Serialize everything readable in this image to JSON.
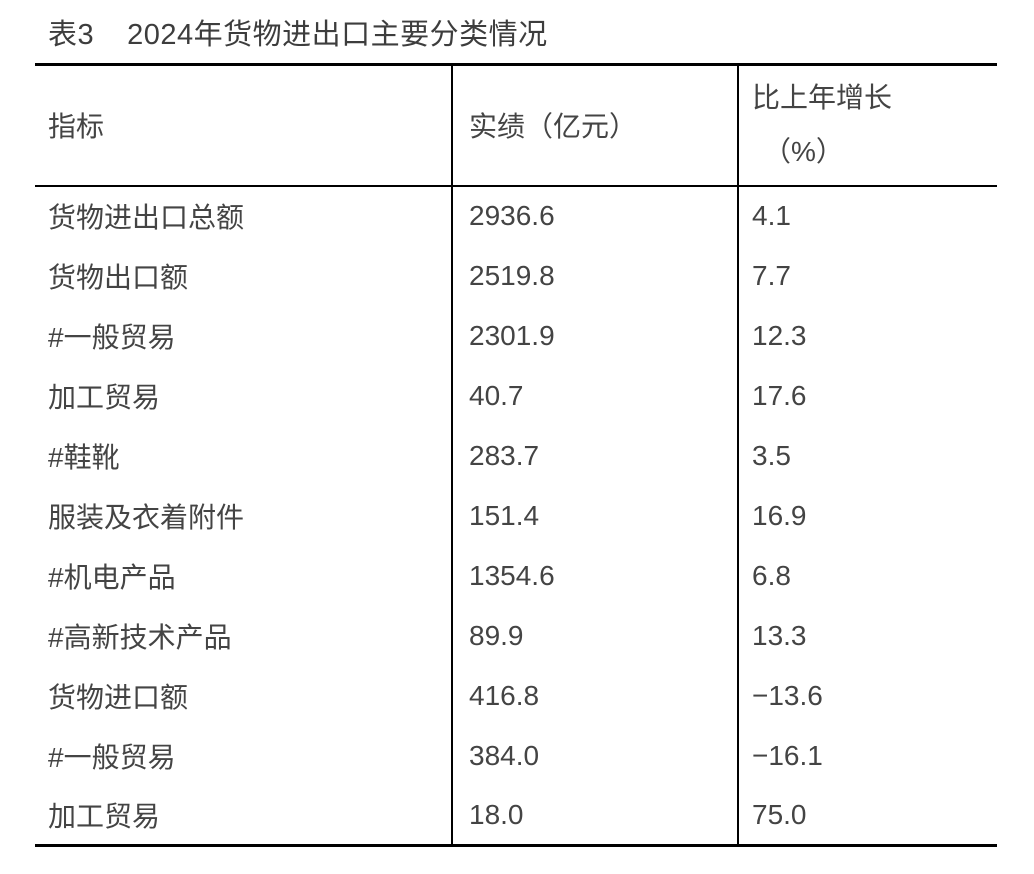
{
  "page": {
    "background": "#ffffff",
    "text_color": "#414141",
    "border_color": "#000000"
  },
  "caption": {
    "table_label": "表3",
    "title": "2024年货物进出口主要分类情况"
  },
  "table": {
    "headers": {
      "indicator": "指标",
      "value": "实绩（亿元）",
      "growth_line1": "比上年增长",
      "growth_line2": "（%）"
    },
    "rows": [
      {
        "indicator": "货物进出口总额",
        "value": "2936.6",
        "growth": "4.1"
      },
      {
        "indicator": "货物出口额",
        "value": "2519.8",
        "growth": "7.7"
      },
      {
        "indicator": "#一般贸易",
        "value": "2301.9",
        "growth": "12.3"
      },
      {
        "indicator": "加工贸易",
        "value": "40.7",
        "growth": "17.6"
      },
      {
        "indicator": "#鞋靴",
        "value": "283.7",
        "growth": "3.5"
      },
      {
        "indicator": "服装及衣着附件",
        "value": "151.4",
        "growth": "16.9"
      },
      {
        "indicator": "#机电产品",
        "value": "1354.6",
        "growth": "6.8"
      },
      {
        "indicator": "#高新技术产品",
        "value": "89.9",
        "growth": "13.3"
      },
      {
        "indicator": "货物进口额",
        "value": "416.8",
        "growth": "−13.6"
      },
      {
        "indicator": "#一般贸易",
        "value": "384.0",
        "growth": "−16.1"
      },
      {
        "indicator": "加工贸易",
        "value": "18.0",
        "growth": "75.0"
      }
    ]
  }
}
